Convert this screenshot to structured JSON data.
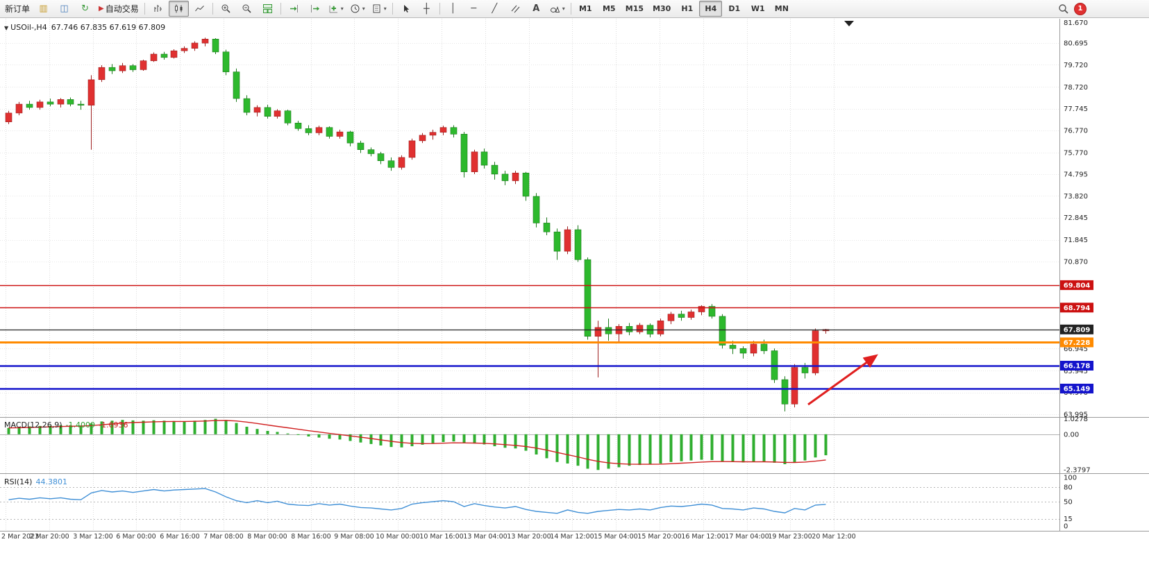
{
  "toolbar": {
    "new_order_label": "新订单",
    "auto_trading_label": "自动交易",
    "text_tool_label": "A",
    "timeframes": [
      "M1",
      "M5",
      "M15",
      "M30",
      "H1",
      "H4",
      "D1",
      "W1",
      "MN"
    ],
    "active_timeframe": "H4",
    "notification_count": "1"
  },
  "chart": {
    "symbol": "USOil-,H4",
    "ohlc": "67.746 67.835 67.619 67.809",
    "colors": {
      "up": "#e03030",
      "up_border": "#9e1f1f",
      "down": "#2db92d",
      "down_border": "#1b7a1b"
    },
    "price_labels": [
      "81.670",
      "80.695",
      "79.720",
      "78.720",
      "77.745",
      "76.770",
      "75.770",
      "74.795",
      "73.820",
      "72.845",
      "71.845",
      "70.870",
      "66.945",
      "65.945",
      "64.970",
      "63.995"
    ],
    "time_labels": [
      "2 Mar 2023",
      "2 Mar 20:00",
      "3 Mar 12:00",
      "6 Mar 00:00",
      "6 Mar 16:00",
      "7 Mar 08:00",
      "8 Mar 00:00",
      "8 Mar 16:00",
      "9 Mar 08:00",
      "10 Mar 00:00",
      "10 Mar 16:00",
      "13 Mar 04:00",
      "13 Mar 20:00",
      "14 Mar 12:00",
      "15 Mar 04:00",
      "15 Mar 20:00",
      "16 Mar 12:00",
      "17 Mar 04:00",
      "19 Mar 23:00",
      "20 Mar 12:00"
    ],
    "levels": [
      {
        "value": "69.804",
        "color": "#cc1111",
        "weight": 1.5
      },
      {
        "value": "68.794",
        "color": "#cc1111",
        "weight": 1.5
      },
      {
        "value": "67.809",
        "color": "#222222",
        "weight": 1.2
      },
      {
        "value": "67.228",
        "color": "#ff8a00",
        "weight": 3
      },
      {
        "value": "66.178",
        "color": "#1414cc",
        "weight": 2.5
      },
      {
        "value": "65.149",
        "color": "#1414cc",
        "weight": 2.5
      }
    ],
    "candles": [
      [
        77.15,
        77.65,
        77.05,
        77.55
      ],
      [
        77.55,
        78.05,
        77.45,
        77.95
      ],
      [
        77.95,
        78.1,
        77.7,
        77.8
      ],
      [
        77.8,
        78.15,
        77.7,
        78.05
      ],
      [
        78.05,
        78.2,
        77.85,
        77.95
      ],
      [
        77.95,
        78.22,
        77.8,
        78.16
      ],
      [
        78.16,
        78.25,
        77.85,
        77.95
      ],
      [
        77.95,
        78.1,
        77.7,
        77.9
      ],
      [
        77.9,
        79.25,
        75.9,
        79.05
      ],
      [
        79.05,
        79.7,
        78.95,
        79.6
      ],
      [
        79.6,
        79.75,
        79.3,
        79.45
      ],
      [
        79.45,
        79.8,
        79.35,
        79.68
      ],
      [
        79.68,
        79.75,
        79.4,
        79.5
      ],
      [
        79.5,
        79.95,
        79.45,
        79.9
      ],
      [
        79.9,
        80.28,
        79.85,
        80.2
      ],
      [
        80.2,
        80.3,
        79.95,
        80.05
      ],
      [
        80.05,
        80.42,
        80.0,
        80.35
      ],
      [
        80.35,
        80.55,
        80.25,
        80.46
      ],
      [
        80.46,
        80.78,
        80.35,
        80.7
      ],
      [
        80.7,
        80.94,
        80.55,
        80.88
      ],
      [
        80.88,
        80.92,
        80.2,
        80.3
      ],
      [
        80.3,
        80.4,
        79.25,
        79.4
      ],
      [
        79.4,
        79.55,
        78.05,
        78.2
      ],
      [
        78.2,
        78.35,
        77.45,
        77.58
      ],
      [
        77.58,
        77.9,
        77.4,
        77.8
      ],
      [
        77.8,
        77.92,
        77.3,
        77.4
      ],
      [
        77.4,
        77.72,
        77.3,
        77.65
      ],
      [
        77.65,
        77.7,
        77.0,
        77.1
      ],
      [
        77.1,
        77.2,
        76.75,
        76.85
      ],
      [
        76.85,
        77.0,
        76.55,
        76.66
      ],
      [
        76.66,
        76.98,
        76.55,
        76.9
      ],
      [
        76.9,
        76.95,
        76.4,
        76.5
      ],
      [
        76.5,
        76.8,
        76.4,
        76.7
      ],
      [
        76.7,
        76.75,
        76.05,
        76.2
      ],
      [
        76.2,
        76.3,
        75.75,
        75.9
      ],
      [
        75.9,
        76.0,
        75.6,
        75.72
      ],
      [
        75.72,
        75.8,
        75.25,
        75.4
      ],
      [
        75.4,
        75.55,
        74.95,
        75.1
      ],
      [
        75.1,
        75.65,
        75.0,
        75.55
      ],
      [
        75.55,
        76.4,
        75.45,
        76.3
      ],
      [
        76.3,
        76.65,
        76.2,
        76.55
      ],
      [
        76.55,
        76.8,
        76.35,
        76.68
      ],
      [
        76.68,
        76.98,
        76.55,
        76.9
      ],
      [
        76.9,
        77.0,
        76.45,
        76.6
      ],
      [
        76.6,
        76.7,
        74.65,
        74.9
      ],
      [
        74.9,
        75.9,
        74.8,
        75.8
      ],
      [
        75.8,
        75.95,
        75.05,
        75.2
      ],
      [
        75.2,
        75.35,
        74.55,
        74.8
      ],
      [
        74.8,
        74.95,
        74.3,
        74.5
      ],
      [
        74.5,
        74.95,
        74.35,
        74.85
      ],
      [
        74.85,
        74.9,
        73.6,
        73.8
      ],
      [
        73.8,
        73.95,
        72.4,
        72.6
      ],
      [
        72.6,
        72.85,
        72.05,
        72.2
      ],
      [
        72.2,
        72.35,
        70.94,
        71.33
      ],
      [
        71.33,
        72.45,
        71.2,
        72.3
      ],
      [
        72.3,
        72.5,
        70.85,
        70.95
      ],
      [
        70.95,
        71.05,
        67.35,
        67.5
      ],
      [
        67.5,
        68.2,
        65.65,
        67.9
      ],
      [
        67.9,
        68.3,
        67.3,
        67.61
      ],
      [
        67.61,
        68.05,
        67.2,
        67.95
      ],
      [
        67.95,
        68.1,
        67.55,
        67.7
      ],
      [
        67.7,
        68.1,
        67.6,
        68.0
      ],
      [
        68.0,
        68.08,
        67.45,
        67.6
      ],
      [
        67.6,
        68.3,
        67.5,
        68.2
      ],
      [
        68.2,
        68.6,
        68.05,
        68.5
      ],
      [
        68.5,
        68.65,
        68.2,
        68.35
      ],
      [
        68.35,
        68.7,
        68.25,
        68.6
      ],
      [
        68.6,
        68.9,
        68.45,
        68.85
      ],
      [
        68.85,
        68.95,
        68.3,
        68.4
      ],
      [
        68.4,
        68.5,
        66.95,
        67.1
      ],
      [
        67.1,
        67.3,
        66.7,
        66.95
      ],
      [
        66.95,
        67.05,
        66.5,
        66.74
      ],
      [
        66.74,
        67.3,
        66.6,
        67.15
      ],
      [
        67.15,
        67.35,
        66.7,
        66.85
      ],
      [
        66.85,
        66.95,
        65.4,
        65.55
      ],
      [
        65.55,
        65.7,
        64.12,
        64.45
      ],
      [
        64.45,
        66.25,
        64.3,
        66.1
      ],
      [
        66.1,
        66.3,
        65.6,
        65.85
      ],
      [
        65.85,
        67.85,
        65.75,
        67.75
      ],
      [
        67.746,
        67.835,
        67.619,
        67.809
      ]
    ],
    "annotation_arrow": {
      "color": "#e01f1f"
    }
  },
  "macd": {
    "label": "MACD(12,26,9)",
    "value_main": "-1.4009",
    "value_signal": "-1.6936",
    "scale_labels": [
      "1.0278",
      "0.00",
      "-2.3797"
    ],
    "histogram_color": "#2fae2f",
    "signal_color": "#d02020",
    "histogram": [
      0.42,
      0.48,
      0.52,
      0.55,
      0.57,
      0.6,
      0.6,
      0.58,
      0.72,
      0.85,
      0.9,
      0.95,
      0.92,
      0.9,
      0.93,
      0.9,
      0.88,
      0.86,
      0.9,
      0.95,
      1.03,
      0.95,
      0.75,
      0.5,
      0.35,
      0.22,
      0.15,
      0.05,
      -0.05,
      -0.15,
      -0.22,
      -0.3,
      -0.35,
      -0.45,
      -0.55,
      -0.65,
      -0.75,
      -0.85,
      -0.88,
      -0.8,
      -0.7,
      -0.6,
      -0.52,
      -0.48,
      -0.6,
      -0.62,
      -0.68,
      -0.8,
      -0.9,
      -0.95,
      -1.1,
      -1.35,
      -1.6,
      -1.85,
      -1.95,
      -2.1,
      -2.3,
      -2.38,
      -2.3,
      -2.2,
      -2.1,
      -2.05,
      -2.0,
      -1.95,
      -1.85,
      -1.8,
      -1.75,
      -1.7,
      -1.72,
      -1.8,
      -1.85,
      -1.88,
      -1.85,
      -1.82,
      -1.9,
      -2.0,
      -1.9,
      -1.75,
      -1.55,
      -1.4
    ]
  },
  "rsi": {
    "label": "RSI(14)",
    "value": "44.3801",
    "scale_labels": [
      "100",
      "80",
      "50",
      "15",
      "0"
    ],
    "levels": [
      80,
      50,
      15
    ],
    "line_color": "#3f8fd6",
    "values": [
      54,
      57,
      55,
      58,
      56,
      58,
      55,
      54,
      68,
      73,
      70,
      72,
      69,
      72,
      75,
      72,
      74,
      75,
      76,
      77,
      70,
      60,
      52,
      48,
      52,
      48,
      51,
      45,
      43,
      42,
      46,
      43,
      45,
      41,
      38,
      37,
      35,
      33,
      36,
      45,
      48,
      50,
      52,
      50,
      40,
      46,
      42,
      39,
      37,
      40,
      34,
      30,
      28,
      26,
      33,
      28,
      26,
      30,
      32,
      34,
      33,
      35,
      33,
      38,
      41,
      40,
      42,
      45,
      43,
      36,
      35,
      33,
      37,
      35,
      30,
      27,
      36,
      33,
      43,
      44.38
    ]
  }
}
